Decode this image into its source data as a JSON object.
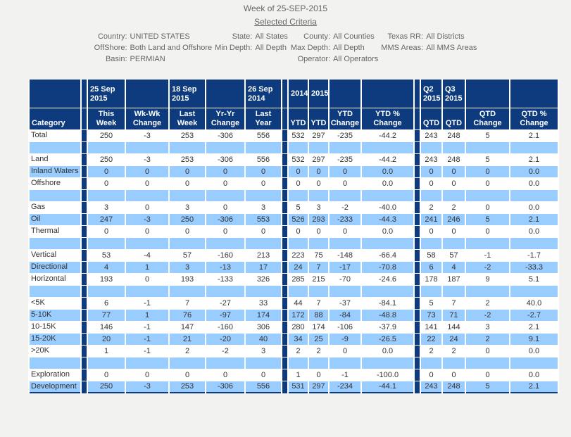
{
  "colors": {
    "navy": "#0d3b7d",
    "stripe": "#99ccff",
    "text-gray": "#666666",
    "cell-text": "#333333"
  },
  "header": {
    "title": "Week of 25-SEP-2015",
    "criteria_link": "Selected Criteria",
    "criteria_rows": [
      [
        {
          "label": "Country:",
          "value": "UNITED STATES"
        },
        {
          "label": "State:",
          "value": "All States"
        },
        {
          "label": "County:",
          "value": "All Counties"
        },
        {
          "label": "Texas RR:",
          "value": "All Districts"
        }
      ],
      [
        {
          "label": "OffShore:",
          "value": "Both Land and Offshore"
        },
        {
          "label": "Min Depth:",
          "value": "All Depth"
        },
        {
          "label": "Max Depth:",
          "value": "All Depth"
        },
        {
          "label": "MMS Areas:",
          "value": "All MMS Areas"
        }
      ],
      [
        {
          "label": "Basin:",
          "value": "PERMIAN"
        },
        null,
        {
          "label": "Operator:",
          "value": "All Operators"
        },
        null
      ]
    ]
  },
  "table": {
    "header_top": [
      "",
      "25 Sep 2015",
      "",
      "18 Sep 2015",
      "",
      "26 Sep 2014",
      "2014",
      "2015",
      "",
      "",
      "Q2 2015",
      "Q3 2015",
      "",
      ""
    ],
    "header_bottom": [
      "Category",
      "This Week",
      "Wk-Wk Change",
      "Last Week",
      "Yr-Yr Change",
      "Last Year",
      "YTD",
      "YTD",
      "YTD Change",
      "YTD % Change",
      "QTD",
      "QTD",
      "QTD Change",
      "QTD % Change"
    ],
    "rows": [
      {
        "category": "Total",
        "values": [
          "250",
          "-3",
          "253",
          "-306",
          "556",
          "532",
          "297",
          "-235",
          "-44.2",
          "243",
          "248",
          "5",
          "2.1"
        ]
      },
      {
        "blank": true
      },
      {
        "category": "Land",
        "values": [
          "250",
          "-3",
          "253",
          "-306",
          "556",
          "532",
          "297",
          "-235",
          "-44.2",
          "243",
          "248",
          "5",
          "2.1"
        ]
      },
      {
        "category": "Inland Waters",
        "values": [
          "0",
          "0",
          "0",
          "0",
          "0",
          "0",
          "0",
          "0",
          "0.0",
          "0",
          "0",
          "0",
          "0.0"
        ]
      },
      {
        "category": "Offshore",
        "values": [
          "0",
          "0",
          "0",
          "0",
          "0",
          "0",
          "0",
          "0",
          "0.0",
          "0",
          "0",
          "0",
          "0.0"
        ]
      },
      {
        "blank": true
      },
      {
        "category": "Gas",
        "values": [
          "3",
          "0",
          "3",
          "0",
          "3",
          "5",
          "3",
          "-2",
          "-40.0",
          "2",
          "2",
          "0",
          "0.0"
        ]
      },
      {
        "category": "Oil",
        "values": [
          "247",
          "-3",
          "250",
          "-306",
          "553",
          "526",
          "293",
          "-233",
          "-44.3",
          "241",
          "246",
          "5",
          "2.1"
        ]
      },
      {
        "category": "Thermal",
        "values": [
          "0",
          "0",
          "0",
          "0",
          "0",
          "0",
          "0",
          "0",
          "0.0",
          "0",
          "0",
          "0",
          "0.0"
        ]
      },
      {
        "blank": true
      },
      {
        "category": "Vertical",
        "values": [
          "53",
          "-4",
          "57",
          "-160",
          "213",
          "223",
          "75",
          "-148",
          "-66.4",
          "58",
          "57",
          "-1",
          "-1.7"
        ]
      },
      {
        "category": "Directional",
        "values": [
          "4",
          "1",
          "3",
          "-13",
          "17",
          "24",
          "7",
          "-17",
          "-70.8",
          "6",
          "4",
          "-2",
          "-33.3"
        ]
      },
      {
        "category": "Horizontal",
        "values": [
          "193",
          "0",
          "193",
          "-133",
          "326",
          "285",
          "215",
          "-70",
          "-24.6",
          "178",
          "187",
          "9",
          "5.1"
        ]
      },
      {
        "blank": true
      },
      {
        "category": "<5K",
        "values": [
          "6",
          "-1",
          "7",
          "-27",
          "33",
          "44",
          "7",
          "-37",
          "-84.1",
          "5",
          "7",
          "2",
          "40.0"
        ]
      },
      {
        "category": "5-10K",
        "values": [
          "77",
          "1",
          "76",
          "-97",
          "174",
          "172",
          "88",
          "-84",
          "-48.8",
          "73",
          "71",
          "-2",
          "-2.7"
        ]
      },
      {
        "category": "10-15K",
        "values": [
          "146",
          "-1",
          "147",
          "-160",
          "306",
          "280",
          "174",
          "-106",
          "-37.9",
          "141",
          "144",
          "3",
          "2.1"
        ]
      },
      {
        "category": "15-20K",
        "values": [
          "20",
          "-1",
          "21",
          "-20",
          "40",
          "34",
          "25",
          "-9",
          "-26.5",
          "22",
          "24",
          "2",
          "9.1"
        ]
      },
      {
        "category": ">20K",
        "values": [
          "1",
          "-1",
          "2",
          "-2",
          "3",
          "2",
          "2",
          "0",
          "0.0",
          "2",
          "2",
          "0",
          "0.0"
        ]
      },
      {
        "blank": true
      },
      {
        "category": "Exploration",
        "values": [
          "0",
          "0",
          "0",
          "0",
          "0",
          "1",
          "0",
          "-1",
          "-100.0",
          "0",
          "0",
          "0",
          "0.0"
        ]
      },
      {
        "category": "Development",
        "values": [
          "250",
          "-3",
          "253",
          "-306",
          "556",
          "531",
          "297",
          "-234",
          "-44.1",
          "243",
          "248",
          "5",
          "2.1"
        ]
      }
    ]
  }
}
